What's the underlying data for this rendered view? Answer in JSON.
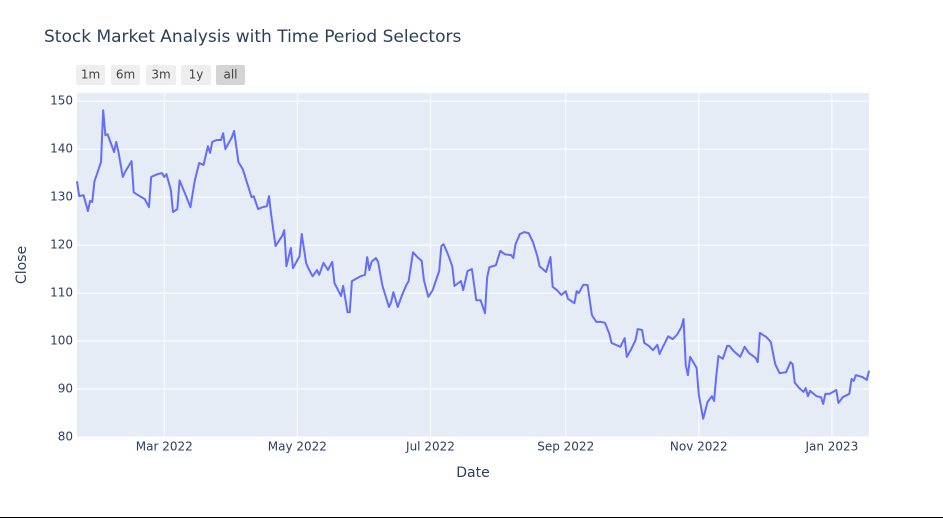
{
  "chart_data": {
    "type": "line",
    "title": "Stock Market Analysis with Time Period Selectors",
    "range_selector": {
      "buttons": [
        "1m",
        "6m",
        "3m",
        "1y",
        "all"
      ],
      "active": 4
    },
    "x_label": "Date",
    "y_label": "Close",
    "color": "#636efa",
    "grid": true,
    "xlim": [
      "2022-01-20",
      "2023-01-18"
    ],
    "xticks": [
      {
        "value": "2022-03-01",
        "label": "Mar 2022"
      },
      {
        "value": "2022-05-01",
        "label": "May 2022"
      },
      {
        "value": "2022-07-01",
        "label": "Jul 2022"
      },
      {
        "value": "2022-09-01",
        "label": "Sep 2022"
      },
      {
        "value": "2022-11-01",
        "label": "Nov 2022"
      },
      {
        "value": "2023-01-01",
        "label": "Jan 2023"
      }
    ],
    "ylim": [
      80,
      151.7
    ],
    "yticks": [
      80,
      90,
      100,
      110,
      120,
      130,
      140,
      150
    ],
    "x": [
      "2022-01-20",
      "2022-01-21",
      "2022-01-23",
      "2022-01-25",
      "2022-01-26",
      "2022-01-27",
      "2022-01-28",
      "2022-01-29",
      "2022-01-31",
      "2022-02-01",
      "2022-02-02",
      "2022-02-03",
      "2022-02-06",
      "2022-02-07",
      "2022-02-08",
      "2022-02-10",
      "2022-02-11",
      "2022-02-14",
      "2022-02-15",
      "2022-02-17",
      "2022-02-20",
      "2022-02-22",
      "2022-02-23",
      "2022-02-26",
      "2022-02-28",
      "2022-03-01",
      "2022-03-02",
      "2022-03-04",
      "2022-03-05",
      "2022-03-07",
      "2022-03-08",
      "2022-03-11",
      "2022-03-13",
      "2022-03-15",
      "2022-03-17",
      "2022-03-19",
      "2022-03-21",
      "2022-03-22",
      "2022-03-23",
      "2022-03-25",
      "2022-03-27",
      "2022-03-28",
      "2022-03-29",
      "2022-04-01",
      "2022-04-02",
      "2022-04-04",
      "2022-04-06",
      "2022-04-08",
      "2022-04-10",
      "2022-04-11",
      "2022-04-13",
      "2022-04-15",
      "2022-04-17",
      "2022-04-18",
      "2022-04-19",
      "2022-04-21",
      "2022-04-24",
      "2022-04-25",
      "2022-04-26",
      "2022-04-28",
      "2022-04-29",
      "2022-04-30",
      "2022-05-02",
      "2022-05-03",
      "2022-05-05",
      "2022-05-06",
      "2022-05-08",
      "2022-05-10",
      "2022-05-11",
      "2022-05-13",
      "2022-05-15",
      "2022-05-17",
      "2022-05-18",
      "2022-05-21",
      "2022-05-22",
      "2022-05-24",
      "2022-05-25",
      "2022-05-26",
      "2022-05-30",
      "2022-06-01",
      "2022-06-02",
      "2022-06-03",
      "2022-06-04",
      "2022-06-06",
      "2022-06-07",
      "2022-06-09",
      "2022-06-12",
      "2022-06-13",
      "2022-06-14",
      "2022-06-16",
      "2022-06-18",
      "2022-06-20",
      "2022-06-21",
      "2022-06-23",
      "2022-06-25",
      "2022-06-27",
      "2022-06-28",
      "2022-06-30",
      "2022-07-02",
      "2022-07-05",
      "2022-07-06",
      "2022-07-07",
      "2022-07-09",
      "2022-07-11",
      "2022-07-12",
      "2022-07-15",
      "2022-07-16",
      "2022-07-18",
      "2022-07-20",
      "2022-07-22",
      "2022-07-24",
      "2022-07-26",
      "2022-07-27",
      "2022-07-28",
      "2022-07-31",
      "2022-08-02",
      "2022-08-04",
      "2022-08-07",
      "2022-08-08",
      "2022-08-09",
      "2022-08-11",
      "2022-08-13",
      "2022-08-15",
      "2022-08-17",
      "2022-08-19",
      "2022-08-20",
      "2022-08-23",
      "2022-08-25",
      "2022-08-26",
      "2022-08-28",
      "2022-08-30",
      "2022-09-01",
      "2022-09-02",
      "2022-09-05",
      "2022-09-06",
      "2022-09-07",
      "2022-09-09",
      "2022-09-11",
      "2022-09-13",
      "2022-09-15",
      "2022-09-17",
      "2022-09-19",
      "2022-09-21",
      "2022-09-22",
      "2022-09-24",
      "2022-09-26",
      "2022-09-28",
      "2022-09-29",
      "2022-10-01",
      "2022-10-03",
      "2022-10-04",
      "2022-10-06",
      "2022-10-07",
      "2022-10-09",
      "2022-10-11",
      "2022-10-13",
      "2022-10-14",
      "2022-10-16",
      "2022-10-18",
      "2022-10-20",
      "2022-10-22",
      "2022-10-24",
      "2022-10-25",
      "2022-10-26",
      "2022-10-27",
      "2022-10-28",
      "2022-10-31",
      "2022-11-01",
      "2022-11-03",
      "2022-11-05",
      "2022-11-07",
      "2022-11-08",
      "2022-11-09",
      "2022-11-10",
      "2022-11-12",
      "2022-11-14",
      "2022-11-15",
      "2022-11-17",
      "2022-11-20",
      "2022-11-22",
      "2022-11-24",
      "2022-11-27",
      "2022-11-28",
      "2022-11-29",
      "2022-12-02",
      "2022-12-04",
      "2022-12-06",
      "2022-12-08",
      "2022-12-11",
      "2022-12-13",
      "2022-12-14",
      "2022-12-15",
      "2022-12-17",
      "2022-12-19",
      "2022-12-20",
      "2022-12-21",
      "2022-12-22",
      "2022-12-25",
      "2022-12-27",
      "2022-12-28",
      "2022-12-29",
      "2022-12-31",
      "2023-01-03",
      "2023-01-04",
      "2023-01-06",
      "2023-01-09",
      "2023-01-10",
      "2023-01-11",
      "2023-01-12",
      "2023-01-15",
      "2023-01-17",
      "2023-01-18"
    ],
    "values": [
      133.3,
      130.2,
      130.4,
      127.1,
      129.2,
      129,
      133.3,
      134.6,
      137.3,
      148.1,
      142.9,
      143.1,
      139.4,
      141.5,
      139.4,
      134.2,
      135.2,
      137.5,
      131,
      130.4,
      129.6,
      127.9,
      134.2,
      134.8,
      135,
      134.2,
      134.8,
      131.5,
      126.9,
      127.5,
      133.5,
      130.2,
      127.9,
      133.5,
      137.1,
      136.7,
      140.6,
      139.2,
      141.5,
      141.9,
      141.9,
      143.3,
      140,
      142.5,
      143.8,
      137.3,
      135.8,
      132.9,
      130,
      130.2,
      127.5,
      127.9,
      128.1,
      130.2,
      126.3,
      119.8,
      121.9,
      123.1,
      115.6,
      119.4,
      115.2,
      116,
      117.7,
      122.3,
      116.3,
      115.2,
      113.5,
      114.8,
      113.8,
      116.3,
      114.8,
      116.5,
      112.1,
      109.4,
      111.5,
      106,
      106,
      112.5,
      113.5,
      113.8,
      117.5,
      114.8,
      116.5,
      117.3,
      116.5,
      111.5,
      107.1,
      108.1,
      110.2,
      107.1,
      109.6,
      111.7,
      112.5,
      118.5,
      117.5,
      116.7,
      112.7,
      109.2,
      110.6,
      114.6,
      119.8,
      120.2,
      118.1,
      115.6,
      111.5,
      112.5,
      110.6,
      114.6,
      115,
      108.5,
      108.5,
      105.8,
      113.3,
      115.4,
      115.8,
      118.8,
      118.1,
      117.9,
      117.3,
      120.2,
      122.3,
      122.7,
      122.5,
      120.6,
      117.7,
      115.6,
      114.4,
      117.5,
      111.3,
      110.6,
      109.6,
      110.4,
      108.8,
      107.9,
      110.4,
      110,
      111.7,
      111.7,
      105.4,
      104,
      104,
      103.8,
      101.5,
      99.6,
      99.2,
      98.8,
      100.6,
      96.7,
      98.3,
      100.2,
      102.5,
      102.3,
      99.6,
      99,
      98.1,
      99.2,
      97.3,
      99.2,
      101,
      100.4,
      101.3,
      102.9,
      104.6,
      95,
      92.9,
      96.7,
      94.4,
      88.8,
      83.8,
      87.3,
      88.5,
      87.5,
      92.7,
      96.9,
      96.3,
      99,
      99,
      97.9,
      96.7,
      98.8,
      97.5,
      96.5,
      95.6,
      101.7,
      100.8,
      99.8,
      95.2,
      93.3,
      93.5,
      95.6,
      95.2,
      91.3,
      90.2,
      89.4,
      90.2,
      88.5,
      89.6,
      88.5,
      88.3,
      86.9,
      89,
      89,
      89.8,
      87.1,
      88.3,
      89,
      92.1,
      91.7,
      92.9,
      92.5,
      91.9,
      93.8
    ]
  }
}
